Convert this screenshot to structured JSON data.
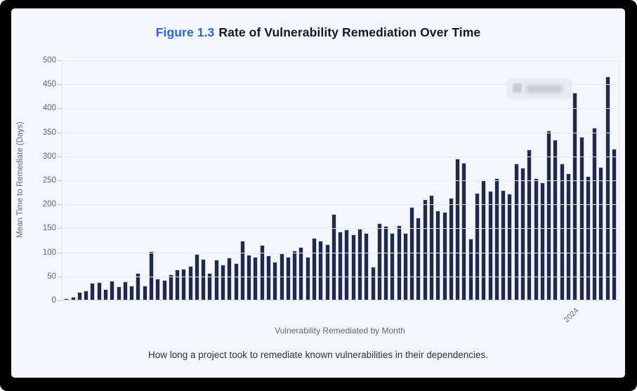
{
  "window": {
    "frame_color": "#000000",
    "background_color": "#f3f6fa"
  },
  "figure_header": {
    "number": "Figure 1.3",
    "title": "Rate of Vulnerability Remediation Over Time",
    "number_color": "#2563eb",
    "title_color": "#16181d"
  },
  "caption": {
    "text": "How long a project took to remediate known vulnerabilities in their dependencies."
  },
  "tooltip": {
    "blurred": true,
    "position": "top-right"
  },
  "chart_data": {
    "type": "bar",
    "title": "Rate of Vulnerability Remediation Over Time",
    "xlabel": "Vulnerability Remediated by Month",
    "ylabel": "Mean Time to Remediate (Days)",
    "ylim": [
      0,
      500
    ],
    "yticks": [
      0,
      50,
      100,
      150,
      200,
      250,
      300,
      350,
      400,
      450,
      500
    ],
    "grid": true,
    "bar_color": "#1f2a4d",
    "x_tick_label": "2024",
    "x_tick_bar_index": 79,
    "n_bars": 85,
    "values": [
      4,
      8,
      17,
      21,
      36,
      38,
      23,
      41,
      29,
      39,
      31,
      57,
      31,
      103,
      46,
      42,
      54,
      64,
      66,
      71,
      96,
      86,
      57,
      85,
      74,
      89,
      77,
      124,
      95,
      90,
      115,
      94,
      81,
      98,
      90,
      104,
      111,
      90,
      130,
      124,
      117,
      180,
      143,
      148,
      137,
      149,
      140,
      70,
      161,
      155,
      140,
      157,
      140,
      194,
      173,
      211,
      219,
      187,
      184,
      214,
      295,
      287,
      128,
      224,
      251,
      228,
      255,
      230,
      222,
      285,
      277,
      315,
      255,
      245,
      354,
      335,
      285,
      265,
      433,
      341,
      259,
      359,
      278,
      467,
      316
    ]
  }
}
